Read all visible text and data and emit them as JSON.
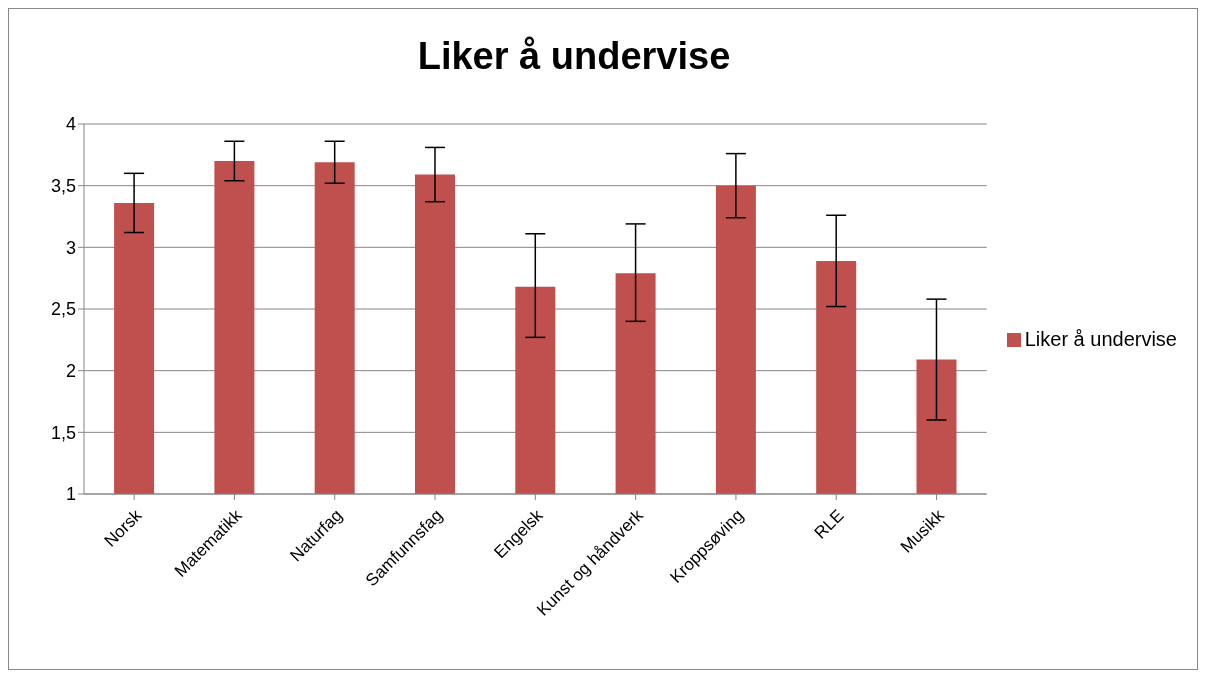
{
  "chart_data": {
    "type": "bar",
    "title": "Liker å undervise",
    "categories": [
      "Norsk",
      "Matematikk",
      "Naturfag",
      "Samfunnsfag",
      "Engelsk",
      "Kunst og håndverk",
      "Kroppsøving",
      "RLE",
      "Musikk"
    ],
    "series": [
      {
        "name": "Liker å undervise",
        "color": "#c0504d",
        "values": [
          3.36,
          3.7,
          3.69,
          3.59,
          2.68,
          2.79,
          3.5,
          2.89,
          2.09
        ],
        "errors": [
          [
            3.12,
            3.6
          ],
          [
            3.54,
            3.86
          ],
          [
            3.52,
            3.86
          ],
          [
            3.37,
            3.81
          ],
          [
            2.27,
            3.11
          ],
          [
            2.4,
            3.19
          ],
          [
            3.24,
            3.76
          ],
          [
            2.52,
            3.26
          ],
          [
            1.6,
            2.58
          ]
        ]
      }
    ],
    "ylim": [
      1,
      4
    ],
    "yticks": [
      1,
      {
        "value": 1.5,
        "label": "1,5"
      },
      2,
      {
        "value": 2.5,
        "label": "2,5"
      },
      3,
      {
        "value": 3.5,
        "label": "3,5"
      },
      4
    ],
    "grid": "y",
    "legend": "right"
  }
}
